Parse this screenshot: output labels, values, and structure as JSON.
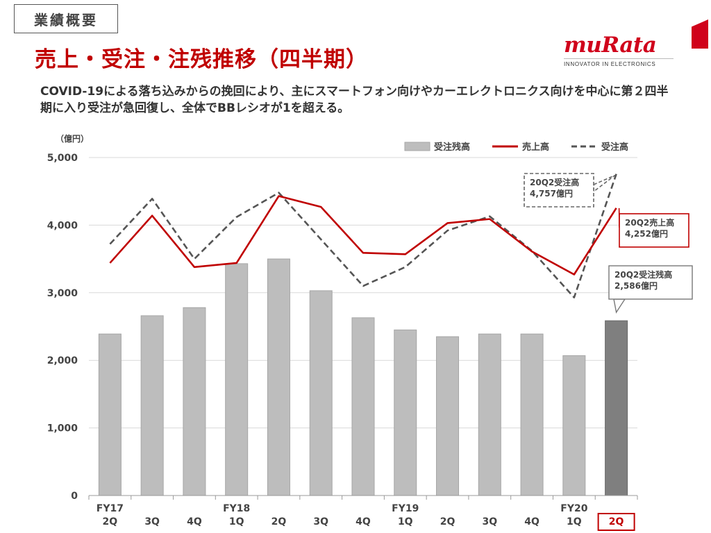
{
  "header": {
    "section_tag": "業績概要",
    "title": "売上・受注・注残推移（四半期）",
    "logo_text": "muRata",
    "logo_tagline": "INNOVATOR IN ELECTRONICS"
  },
  "lead_text": "COVID-19による落ち込みからの挽回により、主にスマートフォン向けやカーエレクトロニクス向けを中心に第２四半期に入り受注が急回復し、全体でBBレシオが1を超える。",
  "colors": {
    "accent": "#c00000",
    "bar": "#bdbdbd",
    "bar_highlight": "#7f7f7f",
    "order_line": "#555555"
  },
  "chart_data": {
    "type": "bar",
    "unit_label": "（億円）",
    "ylim": [
      0,
      5000
    ],
    "yticks": [
      "0",
      "1,000",
      "2,000",
      "3,000",
      "4,000",
      "5,000"
    ],
    "grid": true,
    "legend_position": "top-right",
    "categories": [
      {
        "fy": "FY17",
        "q": "2Q"
      },
      {
        "fy": "",
        "q": "3Q"
      },
      {
        "fy": "",
        "q": "4Q"
      },
      {
        "fy": "FY18",
        "q": "1Q"
      },
      {
        "fy": "",
        "q": "2Q"
      },
      {
        "fy": "",
        "q": "3Q"
      },
      {
        "fy": "",
        "q": "4Q"
      },
      {
        "fy": "FY19",
        "q": "1Q"
      },
      {
        "fy": "",
        "q": "2Q"
      },
      {
        "fy": "",
        "q": "3Q"
      },
      {
        "fy": "",
        "q": "4Q"
      },
      {
        "fy": "FY20",
        "q": "1Q"
      },
      {
        "fy": "",
        "q": "2Q"
      }
    ],
    "highlight_index": 12,
    "series": [
      {
        "name": "受注残高",
        "type": "bar",
        "values": [
          2390,
          2660,
          2780,
          3430,
          3500,
          3030,
          2630,
          2450,
          2350,
          2390,
          2390,
          2070,
          2586
        ]
      },
      {
        "name": "売上高",
        "type": "line",
        "style": "solid",
        "color": "#c00000",
        "values": [
          3440,
          4140,
          3380,
          3440,
          4430,
          4270,
          3590,
          3570,
          4030,
          4090,
          3610,
          3270,
          4252
        ]
      },
      {
        "name": "受注高",
        "type": "line",
        "style": "dashed",
        "color": "#555555",
        "values": [
          3720,
          4390,
          3500,
          4120,
          4480,
          3790,
          3100,
          3380,
          3920,
          4130,
          3620,
          2930,
          4757
        ]
      }
    ],
    "annotations": [
      {
        "name": "order-callout",
        "series": "受注高",
        "lines": [
          "20Q2受注高",
          "4,757億円"
        ]
      },
      {
        "name": "sales-callout",
        "series": "売上高",
        "lines": [
          "20Q2売上高",
          "4,252億円"
        ]
      },
      {
        "name": "backlog-callout",
        "series": "受注残高",
        "lines": [
          "20Q2受注残高",
          "2,586億円"
        ]
      }
    ]
  }
}
